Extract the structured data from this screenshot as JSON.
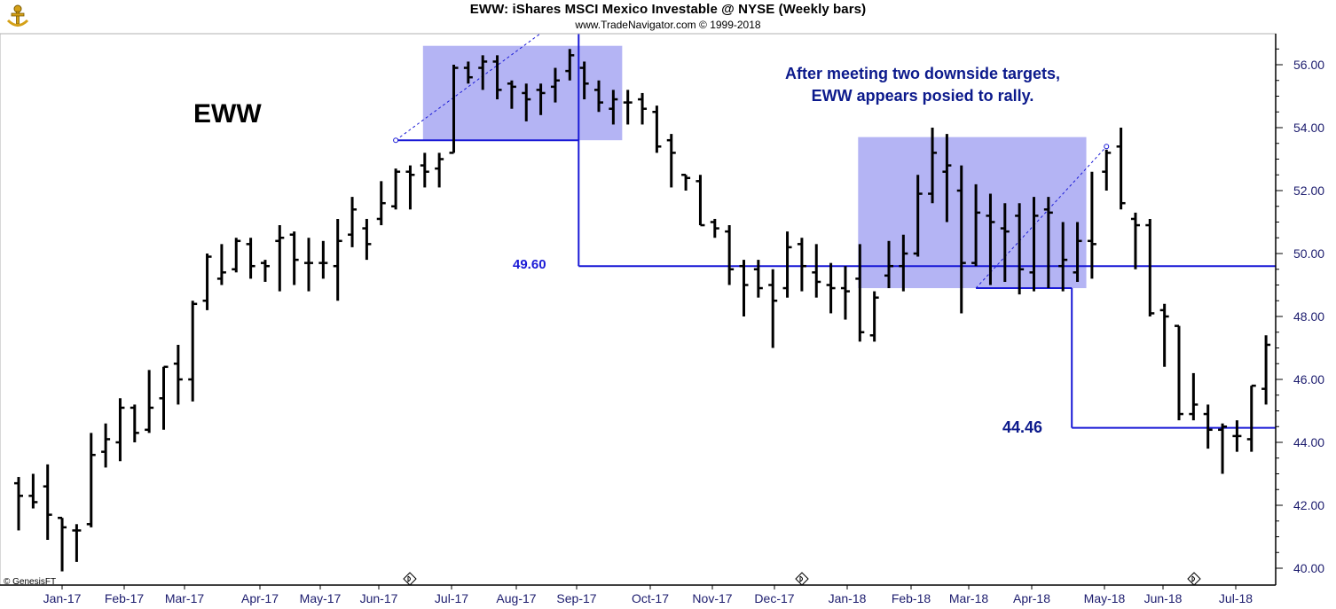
{
  "header": {
    "title": "EWW:  iShares MSCI Mexico Investable @ NYSE  (Weekly bars)",
    "subtitle": "www.TradeNavigator.com © 1999-2018"
  },
  "symbol_label": "EWW",
  "annotation": {
    "line1": "After meeting two downside targets,",
    "line2": "EWW appears posied to rally."
  },
  "levels": {
    "first": "49.60",
    "second": "44.46"
  },
  "credit": "© GenesisFT",
  "icons": {
    "logo": "genesis-anchor-logo",
    "dividend_marker": "dividend-diamond-icon"
  },
  "colors": {
    "bars": "#000000",
    "target_lines": "#1a1ad6",
    "target_box_fill": "#b4b4f4",
    "annotation_text": "#0c1a8c",
    "axis_text": "#1c1c6e"
  },
  "chart_data": {
    "type": "ohlc",
    "title": "EWW:  iShares MSCI Mexico Investable @ NYSE  (Weekly bars)",
    "ylim": [
      39.7,
      57.0
    ],
    "y_ticks": [
      "40.00",
      "42.00",
      "44.00",
      "46.00",
      "48.00",
      "50.00",
      "52.00",
      "54.00",
      "56.00"
    ],
    "x_ticks": [
      "Jan-17",
      "Feb-17",
      "Mar-17",
      "Apr-17",
      "May-17",
      "Jun-17",
      "Jul-17",
      "Aug-17",
      "Sep-17",
      "Oct-17",
      "Nov-17",
      "Dec-17",
      "Jan-18",
      "Feb-18",
      "Mar-18",
      "Apr-18",
      "May-18",
      "Jun-18",
      "Jul-18"
    ],
    "dividend_markers": [
      "Jun-17",
      "Dec-17",
      "Jun-18"
    ],
    "bars": [
      [
        42.7,
        42.9,
        41.2,
        42.3
      ],
      [
        42.3,
        43.0,
        41.9,
        42.1
      ],
      [
        42.6,
        43.3,
        40.9,
        41.7
      ],
      [
        41.6,
        41.6,
        39.9,
        41.3
      ],
      [
        41.2,
        41.4,
        40.2,
        41.2
      ],
      [
        41.4,
        44.3,
        41.3,
        43.6
      ],
      [
        43.7,
        44.6,
        43.2,
        44.1
      ],
      [
        44.0,
        45.4,
        43.4,
        45.1
      ],
      [
        45.1,
        45.2,
        44.0,
        44.3
      ],
      [
        44.4,
        46.3,
        44.3,
        45.1
      ],
      [
        45.4,
        46.4,
        44.4,
        46.4
      ],
      [
        46.5,
        47.1,
        45.2,
        46.0
      ],
      [
        46.0,
        48.5,
        45.3,
        48.4
      ],
      [
        48.5,
        50.0,
        48.2,
        49.9
      ],
      [
        49.2,
        50.3,
        49.0,
        49.4
      ],
      [
        49.5,
        50.5,
        49.4,
        50.4
      ],
      [
        50.3,
        50.5,
        49.2,
        49.6
      ],
      [
        49.7,
        49.8,
        49.1,
        49.6
      ],
      [
        50.4,
        50.9,
        48.8,
        50.5
      ],
      [
        50.6,
        50.7,
        49.0,
        49.8
      ],
      [
        49.7,
        50.5,
        48.8,
        49.7
      ],
      [
        49.7,
        50.4,
        49.2,
        49.7
      ],
      [
        49.6,
        51.1,
        48.5,
        50.4
      ],
      [
        50.6,
        51.8,
        50.2,
        51.4
      ],
      [
        50.8,
        51.1,
        49.8,
        50.3
      ],
      [
        51.1,
        52.3,
        50.9,
        51.6
      ],
      [
        51.5,
        52.7,
        51.4,
        52.6
      ],
      [
        52.6,
        52.8,
        51.4,
        52.5
      ],
      [
        52.8,
        53.2,
        52.1,
        52.6
      ],
      [
        52.7,
        53.2,
        52.1,
        53.0
      ],
      [
        53.2,
        56.0,
        53.2,
        55.9
      ],
      [
        55.9,
        56.1,
        55.4,
        55.6
      ],
      [
        55.9,
        56.3,
        55.2,
        56.1
      ],
      [
        56.1,
        56.3,
        54.9,
        55.2
      ],
      [
        55.4,
        55.5,
        54.6,
        55.3
      ],
      [
        55.1,
        55.4,
        54.2,
        54.9
      ],
      [
        55.2,
        55.4,
        54.4,
        55.1
      ],
      [
        55.3,
        55.9,
        54.8,
        55.5
      ],
      [
        55.8,
        56.5,
        55.5,
        56.3
      ],
      [
        55.9,
        56.1,
        54.9,
        55.4
      ],
      [
        55.2,
        55.5,
        54.5,
        54.8
      ],
      [
        54.6,
        55.2,
        54.1,
        54.9
      ],
      [
        54.8,
        55.2,
        54.1,
        54.8
      ],
      [
        54.9,
        55.1,
        54.1,
        54.6
      ],
      [
        54.5,
        54.7,
        53.2,
        53.4
      ],
      [
        53.6,
        53.8,
        52.1,
        53.2
      ],
      [
        52.5,
        52.5,
        52.0,
        52.4
      ],
      [
        52.3,
        52.5,
        50.9,
        50.9
      ],
      [
        51.0,
        51.1,
        50.5,
        50.8
      ],
      [
        50.7,
        50.9,
        49.0,
        49.5
      ],
      [
        49.6,
        49.8,
        48.0,
        49.0
      ],
      [
        49.5,
        49.8,
        48.6,
        48.9
      ],
      [
        49.0,
        49.5,
        47.0,
        48.5
      ],
      [
        48.9,
        50.7,
        48.6,
        50.2
      ],
      [
        50.3,
        50.5,
        48.8,
        49.6
      ],
      [
        49.4,
        50.3,
        48.6,
        49.1
      ],
      [
        49.0,
        49.7,
        48.1,
        48.9
      ],
      [
        48.9,
        49.6,
        47.9,
        48.8
      ],
      [
        49.2,
        50.3,
        47.2,
        47.5
      ],
      [
        47.4,
        48.8,
        47.2,
        48.6
      ],
      [
        49.3,
        50.4,
        48.9,
        49.6
      ],
      [
        49.6,
        50.6,
        48.8,
        50.0
      ],
      [
        50.0,
        52.5,
        49.9,
        51.9
      ],
      [
        51.9,
        54.0,
        51.6,
        53.2
      ],
      [
        52.6,
        53.8,
        51.0,
        52.8
      ],
      [
        52.0,
        52.8,
        48.1,
        49.7
      ],
      [
        49.7,
        52.2,
        49.6,
        51.3
      ],
      [
        51.2,
        51.9,
        49.0,
        51.0
      ],
      [
        50.8,
        51.6,
        49.1,
        50.7
      ],
      [
        51.2,
        51.6,
        48.7,
        49.5
      ],
      [
        49.4,
        51.8,
        48.8,
        51.2
      ],
      [
        51.4,
        51.8,
        48.9,
        51.3
      ],
      [
        49.6,
        51.0,
        48.8,
        49.8
      ],
      [
        49.4,
        51.0,
        49.1,
        50.4
      ],
      [
        50.4,
        52.6,
        49.2,
        50.3
      ],
      [
        52.6,
        53.3,
        52.0,
        53.2
      ],
      [
        53.4,
        54.0,
        51.4,
        51.6
      ],
      [
        51.1,
        51.3,
        49.5,
        50.9
      ],
      [
        50.9,
        51.1,
        48.0,
        48.1
      ],
      [
        48.2,
        48.4,
        46.4,
        48.0
      ],
      [
        47.7,
        47.7,
        44.7,
        44.9
      ],
      [
        44.9,
        46.2,
        44.7,
        45.2
      ],
      [
        44.9,
        45.2,
        43.8,
        44.4
      ],
      [
        44.4,
        44.6,
        43.0,
        44.5
      ],
      [
        44.2,
        44.7,
        43.7,
        44.2
      ],
      [
        44.1,
        45.8,
        43.7,
        45.8
      ],
      [
        45.7,
        47.4,
        45.2,
        47.1
      ]
    ],
    "target_zones": [
      {
        "from_bar": 28,
        "to_bar": 41,
        "low": 53.6,
        "high": 56.6
      },
      {
        "from_bar": 58,
        "to_bar": 73,
        "low": 48.9,
        "high": 53.7
      }
    ],
    "target_levels": [
      {
        "label": "49.60",
        "value": 49.6,
        "start_bar": 38
      },
      {
        "label": "44.46",
        "value": 44.46,
        "start_bar": 72
      }
    ]
  }
}
